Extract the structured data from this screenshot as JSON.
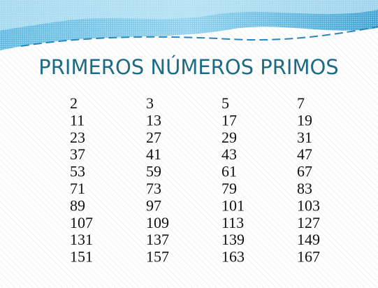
{
  "header": {
    "title": "PRIMEROS NÚMEROS PRIMOS"
  },
  "table": {
    "rows": [
      [
        2,
        3,
        5,
        7
      ],
      [
        11,
        13,
        17,
        19
      ],
      [
        23,
        27,
        29,
        31
      ],
      [
        37,
        41,
        43,
        47
      ],
      [
        53,
        59,
        61,
        67
      ],
      [
        71,
        73,
        79,
        83
      ],
      [
        89,
        97,
        101,
        103
      ],
      [
        107,
        109,
        113,
        127
      ],
      [
        131,
        137,
        139,
        149
      ],
      [
        151,
        157,
        163,
        167
      ]
    ]
  }
}
